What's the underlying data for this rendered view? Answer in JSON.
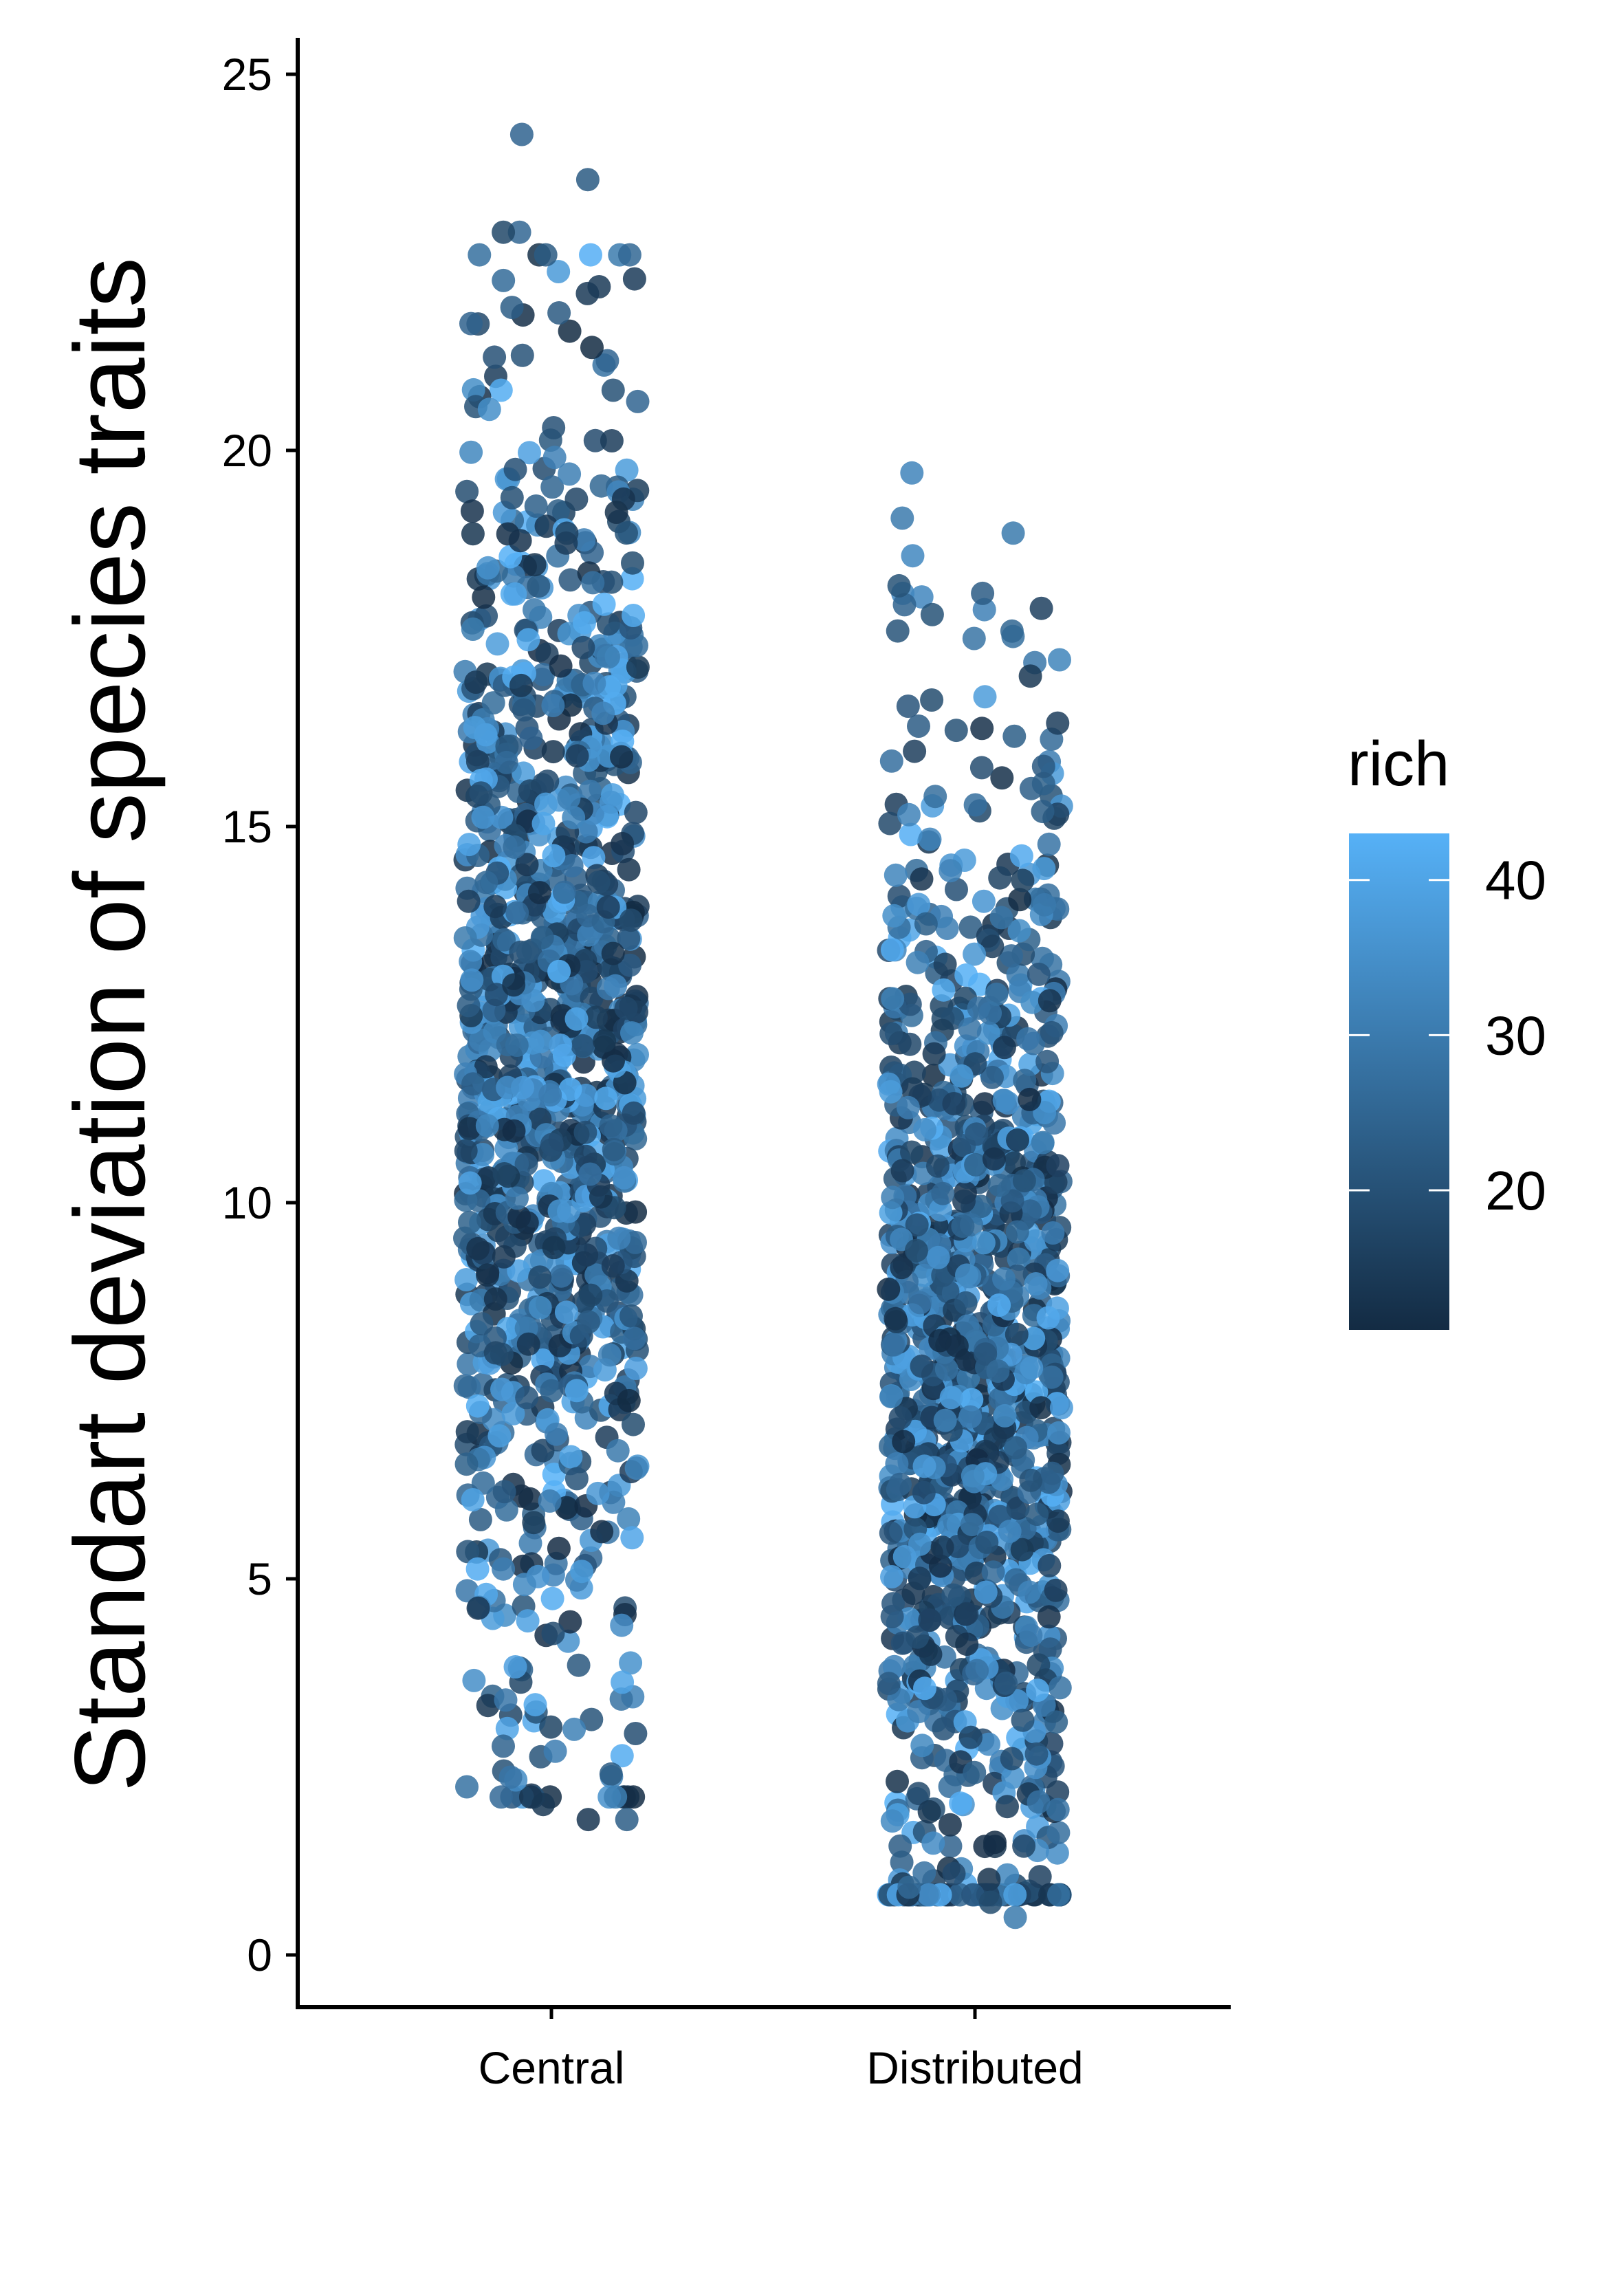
{
  "chart_data": {
    "type": "scatter",
    "subtype": "jitter",
    "ylabel": "Standart deviation of species traits",
    "xlabel": "",
    "ylim": [
      -0.7,
      25.4
    ],
    "yticks": [
      0,
      5,
      10,
      15,
      20,
      25
    ],
    "ytick_labels": [
      "0",
      "5",
      "10",
      "15",
      "20",
      "25"
    ],
    "categories": [
      "Central",
      "Distributed"
    ],
    "grid": false,
    "color_legend": {
      "title": "rich",
      "range": [
        11,
        43
      ],
      "ticks": [
        20,
        30,
        40
      ],
      "tick_labels": [
        "20",
        "30",
        "40"
      ],
      "placement": "right",
      "low_color": "#132B43",
      "high_color": "#56B1F7"
    },
    "groups": [
      {
        "name": "Central",
        "n_points": 1200,
        "y_range": [
          1.8,
          24.2
        ],
        "density_center": 12,
        "notable_points": [
          24.2,
          23.6,
          22.9,
          22.9,
          21.8,
          21.9,
          20.8,
          2.0,
          1.8,
          1.8
        ]
      },
      {
        "name": "Distributed",
        "n_points": 1200,
        "y_range": [
          0.5,
          19.7
        ],
        "density_center": 7.5,
        "notable_points": [
          19.7,
          19.1,
          18.9,
          18.6,
          18.2,
          17.9,
          17.6,
          17.5,
          17.0,
          16.6,
          16.2,
          16.0,
          15.8,
          15.4,
          15.2,
          0.5,
          0.7,
          0.9
        ]
      }
    ]
  }
}
